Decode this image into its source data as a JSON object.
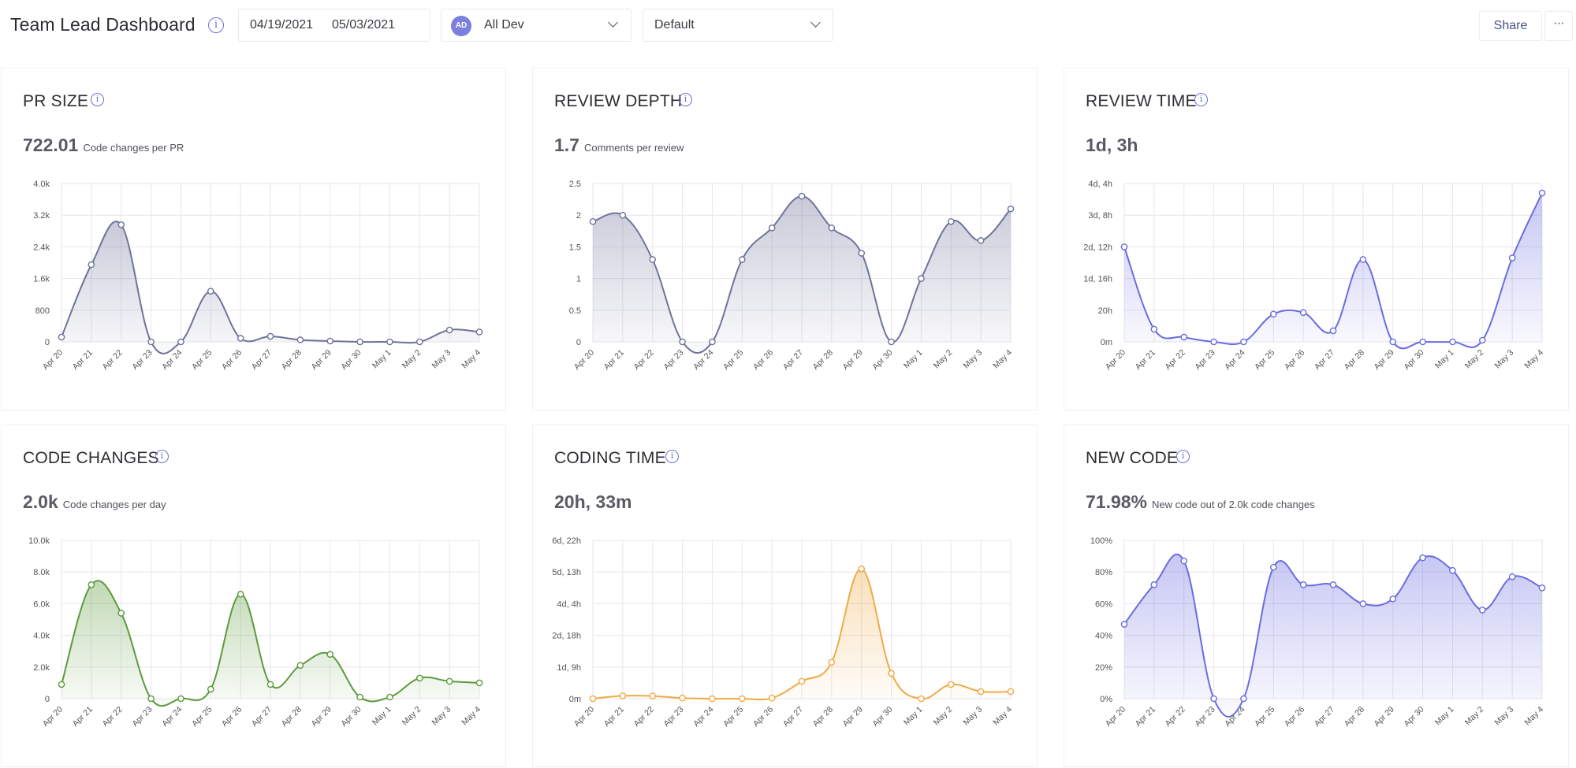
{
  "header": {
    "title": "Team Lead Dashboard",
    "date_start": "04/19/2021",
    "date_end": "05/03/2021",
    "team_avatar": "AD",
    "team_name": "All Dev",
    "view_name": "Default",
    "share_label": "Share",
    "more_label": "···"
  },
  "colors": {
    "accent": "#6c72d6",
    "slate": "#6e7399",
    "green": "#5c9a3c",
    "orange": "#efaa45",
    "violet": "#6a6ce0"
  },
  "panels": [
    {
      "title": "PR SIZE",
      "value": "722.01",
      "subtitle": "Code changes per PR",
      "chart_data": {
        "type": "area",
        "color": "#6e7399",
        "categories": [
          "Apr 20",
          "Apr 21",
          "Apr 22",
          "Apr 23",
          "Apr 24",
          "Apr 25",
          "Apr 26",
          "Apr 27",
          "Apr 28",
          "Apr 29",
          "Apr 30",
          "May 1",
          "May 2",
          "May 3",
          "May 4"
        ],
        "values": [
          120,
          1950,
          2960,
          0,
          0,
          1280,
          90,
          140,
          50,
          20,
          0,
          0,
          0,
          300,
          250
        ],
        "y_ticks": [
          "0",
          "800",
          "1.6k",
          "2.4k",
          "3.2k",
          "4.0k"
        ],
        "ylim": [
          0,
          4000
        ],
        "grid": true
      }
    },
    {
      "title": "REVIEW DEPTH",
      "value": "1.7",
      "subtitle": "Comments per review",
      "chart_data": {
        "type": "area",
        "color": "#6e7399",
        "categories": [
          "Apr 20",
          "Apr 21",
          "Apr 22",
          "Apr 23",
          "Apr 24",
          "Apr 25",
          "Apr 26",
          "Apr 27",
          "Apr 28",
          "Apr 29",
          "Apr 30",
          "May 1",
          "May 2",
          "May 3",
          "May 4"
        ],
        "values": [
          1.9,
          2.0,
          1.3,
          0,
          0,
          1.3,
          1.8,
          2.3,
          1.8,
          1.4,
          0,
          1.0,
          1.9,
          1.6,
          2.1
        ],
        "y_ticks": [
          "0",
          "0.5",
          "1",
          "1.5",
          "2",
          "2.5"
        ],
        "ylim": [
          0,
          2.5
        ],
        "grid": true
      }
    },
    {
      "title": "REVIEW TIME",
      "value": "1d, 3h",
      "subtitle": "",
      "chart_data": {
        "type": "area",
        "color": "#6a6ce0",
        "categories": [
          "Apr 20",
          "Apr 21",
          "Apr 22",
          "Apr 23",
          "Apr 24",
          "Apr 25",
          "Apr 26",
          "Apr 27",
          "Apr 28",
          "Apr 29",
          "Apr 30",
          "May 1",
          "May 2",
          "May 3",
          "May 4"
        ],
        "values": [
          60,
          8,
          3,
          0,
          0,
          17.5,
          18.5,
          7,
          52,
          0,
          0,
          0,
          1,
          53,
          94
        ],
        "y_ticks": [
          "0m",
          "20h",
          "1d, 16h",
          "2d, 12h",
          "3d, 8h",
          "4d, 4h"
        ],
        "ylim": [
          0,
          100
        ],
        "grid": true
      }
    },
    {
      "title": "CODE CHANGES",
      "value": "2.0k",
      "subtitle": "Code changes per day",
      "chart_data": {
        "type": "area",
        "color": "#5c9a3c",
        "categories": [
          "Apr 20",
          "Apr 21",
          "Apr 22",
          "Apr 23",
          "Apr 24",
          "Apr 25",
          "Apr 26",
          "Apr 27",
          "Apr 28",
          "Apr 29",
          "Apr 30",
          "May 1",
          "May 2",
          "May 3",
          "May 4"
        ],
        "values": [
          900,
          7200,
          5400,
          0,
          0,
          600,
          6600,
          900,
          2100,
          2800,
          100,
          100,
          1300,
          1100,
          1000
        ],
        "y_ticks": [
          "0",
          "2.0k",
          "4.0k",
          "6.0k",
          "8.0k",
          "10.0k"
        ],
        "ylim": [
          0,
          10000
        ],
        "grid": true
      }
    },
    {
      "title": "CODING TIME",
      "value": "20h, 33m",
      "subtitle": "",
      "chart_data": {
        "type": "area",
        "color": "#efaa45",
        "categories": [
          "Apr 20",
          "Apr 21",
          "Apr 22",
          "Apr 23",
          "Apr 24",
          "Apr 25",
          "Apr 26",
          "Apr 27",
          "Apr 28",
          "Apr 29",
          "Apr 30",
          "May 1",
          "May 2",
          "May 3",
          "May 4"
        ],
        "values": [
          0,
          1.8,
          1.7,
          0.4,
          0,
          0,
          0.4,
          11,
          23,
          82,
          16,
          0,
          9,
          4.5,
          4.5
        ],
        "y_ticks": [
          "0m",
          "1d, 9h",
          "2d, 18h",
          "4d, 4h",
          "5d, 13h",
          "6d, 22h"
        ],
        "ylim": [
          0,
          100
        ],
        "grid": true
      }
    },
    {
      "title": "NEW CODE",
      "value": "71.98%",
      "subtitle": "New code out of 2.0k code changes",
      "chart_data": {
        "type": "area",
        "color": "#6a6ce0",
        "categories": [
          "Apr 20",
          "Apr 21",
          "Apr 22",
          "Apr 23",
          "Apr 24",
          "Apr 25",
          "Apr 26",
          "Apr 27",
          "Apr 28",
          "Apr 29",
          "Apr 30",
          "May 1",
          "May 2",
          "May 3",
          "May 4"
        ],
        "values": [
          47,
          72,
          87,
          0,
          0,
          83,
          72,
          72,
          60,
          63,
          89,
          81,
          56,
          77,
          70
        ],
        "y_ticks": [
          "0%",
          "20%",
          "40%",
          "60%",
          "80%",
          "100%"
        ],
        "ylim": [
          0,
          100
        ],
        "grid": true
      }
    }
  ]
}
